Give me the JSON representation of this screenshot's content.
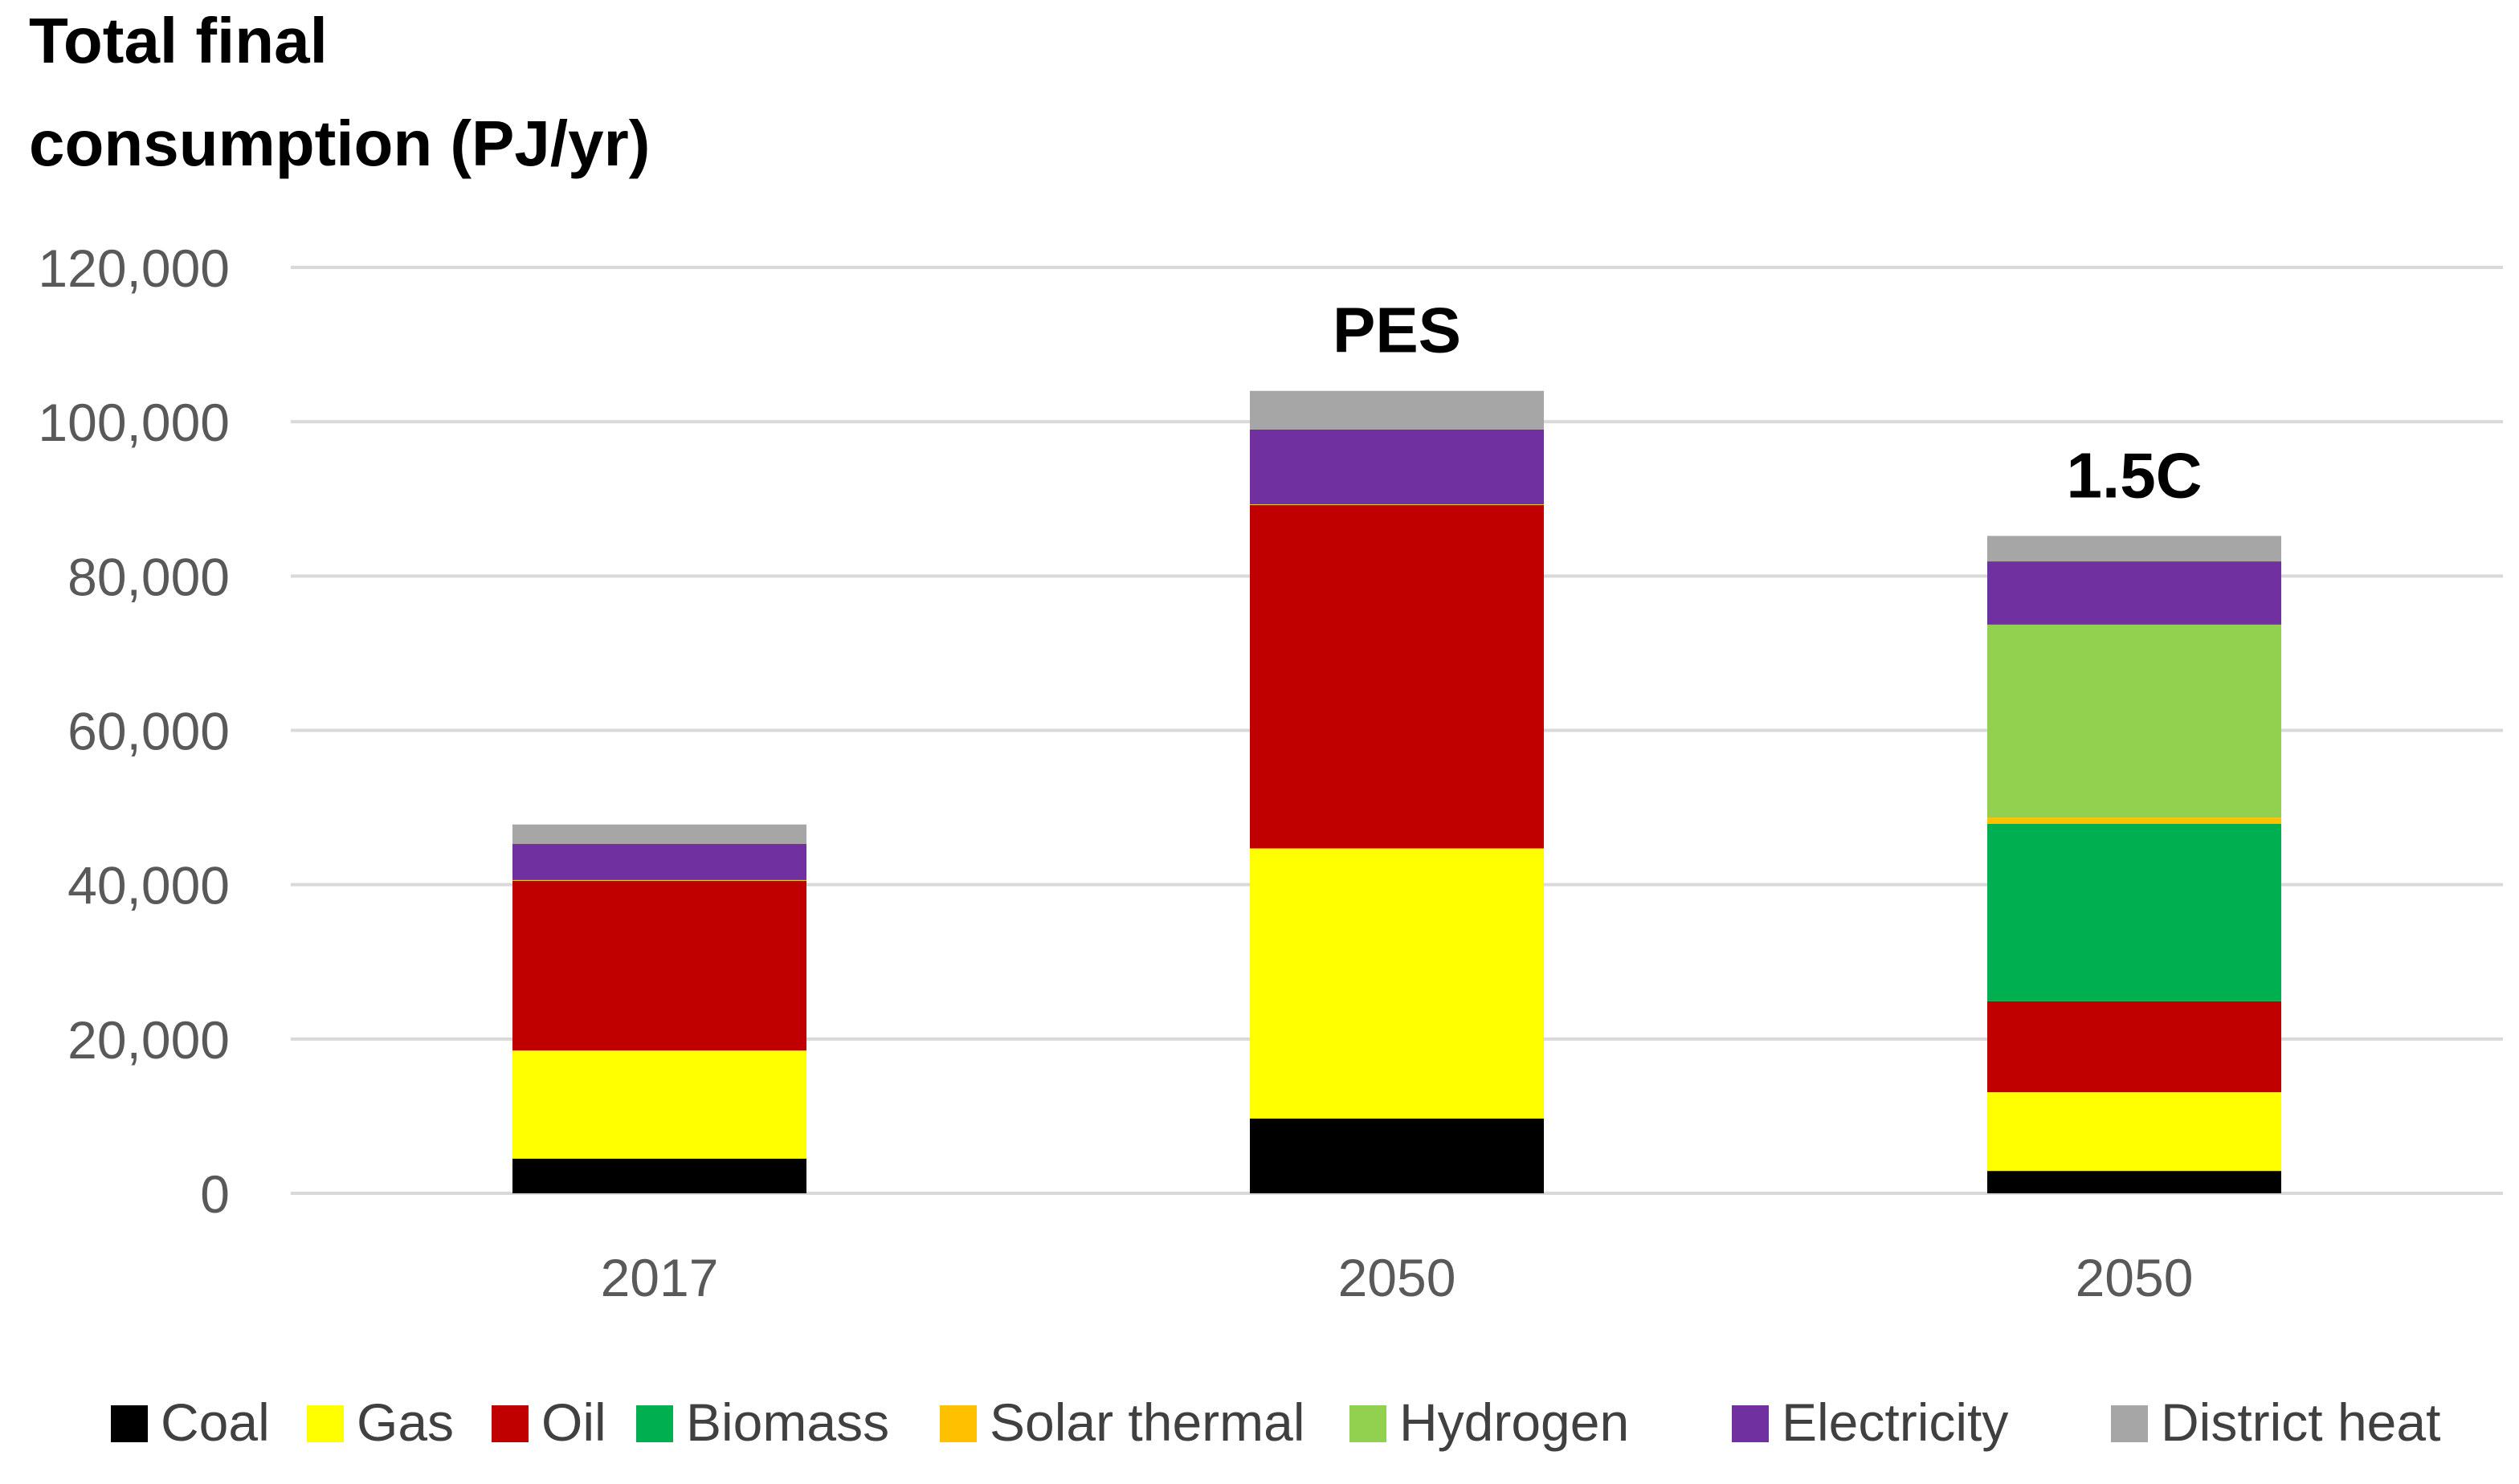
{
  "chart_data": {
    "type": "bar",
    "stacked": true,
    "title_lines": [
      "Total final",
      "consumption (PJ/yr)"
    ],
    "xlabel": "",
    "ylabel": "",
    "ylim": [
      0,
      120000
    ],
    "y_ticks": [
      0,
      20000,
      40000,
      60000,
      80000,
      100000,
      120000
    ],
    "y_tick_labels": [
      "0",
      "20,000",
      "40,000",
      "60,000",
      "80,000",
      "100,000",
      "120,000"
    ],
    "grid": true,
    "legend_position": "bottom",
    "categories": [
      "2017",
      "2050",
      "2050"
    ],
    "bar_annotations": [
      "",
      "PES",
      "1.5C"
    ],
    "series": [
      {
        "name": "Coal",
        "color": "#000000",
        "values": [
          4500,
          9700,
          2900
        ]
      },
      {
        "name": "Gas",
        "color": "#FFFF00",
        "values": [
          14000,
          35000,
          10200
        ]
      },
      {
        "name": "Oil",
        "color": "#C00000",
        "values": [
          22000,
          44500,
          11800
        ]
      },
      {
        "name": "Biomass",
        "color": "#00B050",
        "values": [
          0,
          0,
          23000
        ]
      },
      {
        "name": "Solar thermal",
        "color": "#FFC000",
        "values": [
          100,
          100,
          800
        ]
      },
      {
        "name": "Hydrogen",
        "color": "#92D050",
        "values": [
          0,
          0,
          25000
        ]
      },
      {
        "name": "Electricity",
        "color": "#7030A0",
        "values": [
          4700,
          9700,
          8200
        ]
      },
      {
        "name": "District heat",
        "color": "#A6A6A6",
        "values": [
          2500,
          5000,
          3300
        ]
      }
    ]
  }
}
